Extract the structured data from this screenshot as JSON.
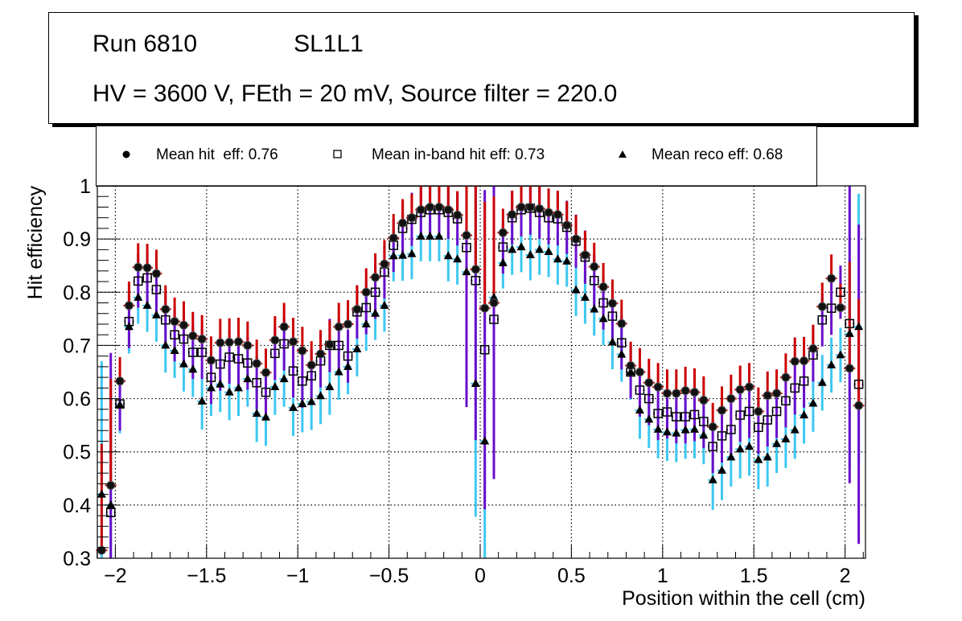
{
  "header": {
    "run": "Run 6810",
    "layer": "SL1L1",
    "conditions": "HV = 3600 V, FEth = 20 mV, Source filter = 220.0"
  },
  "chart_data": {
    "type": "scatter",
    "title": "Run 6810  SL1L1 — HV = 3600 V, FEth = 20 mV, Source filter = 220.0",
    "xlabel": "Position within the cell (cm)",
    "ylabel": "Hit efficiency",
    "xlim": [
      -2.1,
      2.1
    ],
    "ylim": [
      0.3,
      1.0
    ],
    "xticks": [
      -2,
      -1.5,
      -1,
      -0.5,
      0,
      0.5,
      1,
      1.5,
      2
    ],
    "xtick_labels": [
      "−2",
      "−1.5",
      "−1",
      "−0.5",
      "0",
      "0.5",
      "1",
      "1.5",
      "2"
    ],
    "yticks": [
      0.3,
      0.4,
      0.5,
      0.6,
      0.7,
      0.8,
      0.9,
      1
    ],
    "ytick_labels": [
      "0.3",
      "0.4",
      "0.5",
      "0.6",
      "0.7",
      "0.8",
      "0.9",
      "1"
    ],
    "grid": true,
    "legend_position": "top",
    "colors": {
      "hit_err_up": "#cc0000",
      "inband_err": "#6a0dcc",
      "reco_err": "#3dc8f0",
      "marker": "#000000"
    },
    "x": [
      -2.075,
      -2.025,
      -1.975,
      -1.925,
      -1.875,
      -1.825,
      -1.775,
      -1.725,
      -1.675,
      -1.625,
      -1.575,
      -1.525,
      -1.475,
      -1.425,
      -1.375,
      -1.325,
      -1.275,
      -1.225,
      -1.175,
      -1.125,
      -1.075,
      -1.025,
      -0.975,
      -0.925,
      -0.875,
      -0.825,
      -0.775,
      -0.725,
      -0.675,
      -0.625,
      -0.575,
      -0.525,
      -0.475,
      -0.425,
      -0.375,
      -0.325,
      -0.275,
      -0.225,
      -0.175,
      -0.125,
      -0.075,
      -0.025,
      0.025,
      0.075,
      0.125,
      0.175,
      0.225,
      0.275,
      0.325,
      0.375,
      0.425,
      0.475,
      0.525,
      0.575,
      0.625,
      0.675,
      0.725,
      0.775,
      0.825,
      0.875,
      0.925,
      0.975,
      1.025,
      1.075,
      1.125,
      1.175,
      1.225,
      1.275,
      1.325,
      1.375,
      1.425,
      1.475,
      1.525,
      1.575,
      1.625,
      1.675,
      1.725,
      1.775,
      1.825,
      1.875,
      1.925,
      1.975,
      2.025,
      2.075
    ],
    "series": [
      {
        "name": "Mean hit  eff: 0.76",
        "marker": "circle",
        "values": [
          0.315,
          0.437,
          0.633,
          0.775,
          0.847,
          0.846,
          0.835,
          0.768,
          0.745,
          0.738,
          0.718,
          0.712,
          0.672,
          0.705,
          0.706,
          0.707,
          0.7,
          0.666,
          0.649,
          0.71,
          0.735,
          0.707,
          0.69,
          0.663,
          0.684,
          0.702,
          0.735,
          0.74,
          0.768,
          0.8,
          0.828,
          0.853,
          0.902,
          0.93,
          0.94,
          0.955,
          0.96,
          0.96,
          0.955,
          0.945,
          0.907,
          0.843,
          0.77,
          0.78,
          0.912,
          0.946,
          0.96,
          0.96,
          0.957,
          0.95,
          0.946,
          0.926,
          0.9,
          0.87,
          0.848,
          0.81,
          0.779,
          0.741,
          0.662,
          0.65,
          0.63,
          0.622,
          0.61,
          0.61,
          0.615,
          0.612,
          0.597,
          0.547,
          0.578,
          0.6,
          0.617,
          0.622,
          0.576,
          0.606,
          0.61,
          0.64,
          0.67,
          0.671,
          0.694,
          0.773,
          0.826,
          0.771,
          0.657,
          0.587
        ]
      },
      {
        "name": "Mean in-band hit eff: 0.73",
        "marker": "open-square",
        "values": [
          null,
          0.386,
          0.59,
          0.745,
          0.821,
          0.827,
          0.805,
          0.748,
          0.72,
          0.712,
          0.687,
          0.687,
          0.64,
          0.665,
          0.678,
          0.675,
          0.667,
          0.63,
          0.612,
          0.685,
          0.703,
          0.652,
          0.633,
          0.643,
          0.671,
          0.7,
          0.7,
          0.68,
          0.763,
          0.771,
          0.8,
          0.838,
          0.888,
          0.92,
          0.937,
          0.95,
          0.955,
          0.955,
          0.95,
          0.938,
          0.884,
          0.822,
          0.692,
          0.749,
          0.885,
          0.94,
          0.955,
          0.958,
          0.95,
          0.94,
          0.938,
          0.922,
          0.896,
          0.866,
          0.822,
          0.78,
          0.755,
          0.705,
          0.65,
          0.616,
          0.6,
          0.572,
          0.575,
          0.566,
          0.566,
          0.57,
          0.557,
          0.51,
          0.53,
          0.542,
          0.569,
          0.576,
          0.546,
          0.56,
          0.576,
          0.596,
          0.62,
          0.633,
          0.682,
          0.748,
          0.77,
          0.8,
          0.741,
          0.627
        ]
      },
      {
        "name": "Mean reco eff: 0.68",
        "marker": "triangle",
        "values": [
          0.42,
          0.4,
          0.588,
          0.735,
          0.79,
          0.775,
          0.757,
          0.7,
          0.69,
          0.665,
          0.655,
          0.595,
          0.62,
          0.627,
          0.612,
          0.62,
          0.637,
          0.572,
          0.565,
          0.622,
          0.637,
          0.583,
          0.59,
          0.594,
          0.605,
          0.622,
          0.65,
          0.66,
          0.693,
          0.74,
          0.76,
          0.775,
          0.868,
          0.869,
          0.872,
          0.905,
          0.905,
          0.905,
          0.868,
          0.862,
          0.838,
          0.628,
          0.52,
          0.79,
          0.855,
          0.88,
          0.885,
          0.87,
          0.88,
          0.876,
          0.862,
          0.858,
          0.804,
          0.79,
          0.768,
          0.75,
          0.706,
          0.683,
          0.65,
          0.578,
          0.561,
          0.542,
          0.537,
          0.535,
          0.541,
          0.542,
          0.531,
          0.447,
          0.465,
          0.49,
          0.505,
          0.51,
          0.485,
          0.49,
          0.515,
          0.524,
          0.541,
          0.569,
          0.591,
          0.63,
          0.663,
          0.682,
          0.722,
          0.735,
          0.585
        ]
      }
    ]
  },
  "legend": {
    "items": [
      {
        "label": "Mean hit  eff: 0.76",
        "marker": "circle"
      },
      {
        "label": "Mean in-band hit eff: 0.73",
        "marker": "open-square"
      },
      {
        "label": "Mean reco eff: 0.68",
        "marker": "triangle"
      }
    ]
  }
}
